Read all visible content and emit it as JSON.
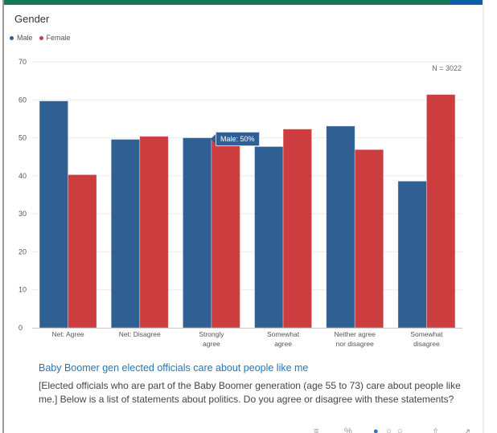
{
  "header": {
    "title": "Gender",
    "n_label": "N = 3022"
  },
  "colors": {
    "male": "#2f5f93",
    "female": "#cc3d3f",
    "accent_green": "#13795b",
    "accent_blue": "#0a5fa8",
    "link": "#2a74b5"
  },
  "tooltip": {
    "text": "Male: 50%"
  },
  "question": {
    "title": "Baby Boomer gen elected officials care about people like me",
    "text": "[Elected officials who are part of the Baby Boomer generation (age 55 to 73) care about people like me.] Below is a list of statements about politics. Do you agree or disagree with these statements?"
  },
  "toolbar": {
    "icons": [
      "chart-type-icon",
      "percent-icon",
      "series-dot-active-icon",
      "series-dot-icon",
      "series-dot-icon-2",
      "sort-icon",
      "expand-icon"
    ]
  },
  "chart_data": {
    "type": "bar",
    "title": "Gender",
    "categories": [
      [
        "Net:  Agree"
      ],
      [
        "Net:  Disagree"
      ],
      [
        "Strongly",
        "agree"
      ],
      [
        "Somewhat",
        "agree"
      ],
      [
        "Neither  agree",
        "nor  disagree"
      ],
      [
        "Somewhat",
        "disagree"
      ]
    ],
    "series": [
      {
        "name": "Male",
        "color": "#2f5f93",
        "values": [
          59.7,
          49.6,
          50,
          47.7,
          53.1,
          38.6
        ]
      },
      {
        "name": "Female",
        "color": "#cc3d3f",
        "values": [
          40.3,
          50.4,
          50,
          52.3,
          46.9,
          61.4
        ]
      }
    ],
    "yticks": [
      0,
      10,
      20,
      30,
      40,
      50,
      60,
      70
    ],
    "ylim": [
      0,
      70
    ],
    "grid": true,
    "legend": "top-left",
    "xlabel": "",
    "ylabel": ""
  }
}
